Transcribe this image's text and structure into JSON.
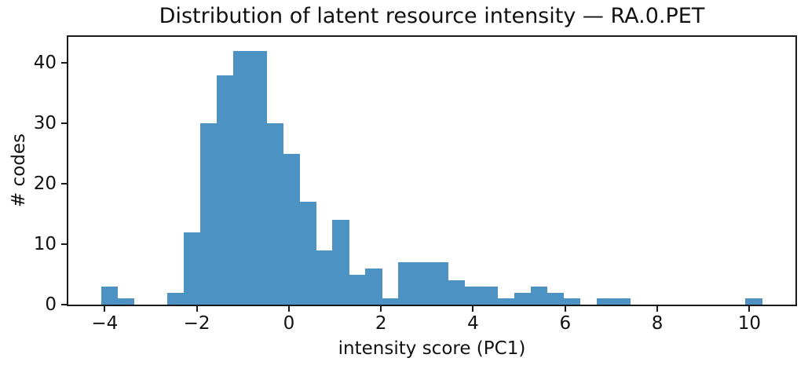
{
  "chart_data": {
    "type": "bar",
    "subtype": "histogram",
    "title": "Distribution of latent resource intensity — RA.0.PET",
    "xlabel": "intensity score (PC1)",
    "ylabel": "# codes",
    "bar_color": "#4C92C3",
    "axis_color": "#1a1a1a",
    "text_color": "#111111",
    "bin_start": -4.08,
    "bin_width": 0.3589,
    "counts": [
      3,
      1,
      0,
      0,
      2,
      12,
      30,
      38,
      42,
      42,
      30,
      25,
      17,
      9,
      14,
      5,
      6,
      1,
      7,
      7,
      7,
      4,
      3,
      3,
      1,
      2,
      3,
      2,
      1,
      0,
      1,
      1,
      0,
      0,
      0,
      0,
      0,
      0,
      0,
      1
    ],
    "xlim": [
      -4.79,
      11.0
    ],
    "ylim": [
      0,
      44.3
    ],
    "xticks": [
      -4,
      -2,
      0,
      2,
      4,
      6,
      8,
      10
    ],
    "yticks": [
      0,
      10,
      20,
      30,
      40
    ],
    "grid": false,
    "legend": null
  }
}
